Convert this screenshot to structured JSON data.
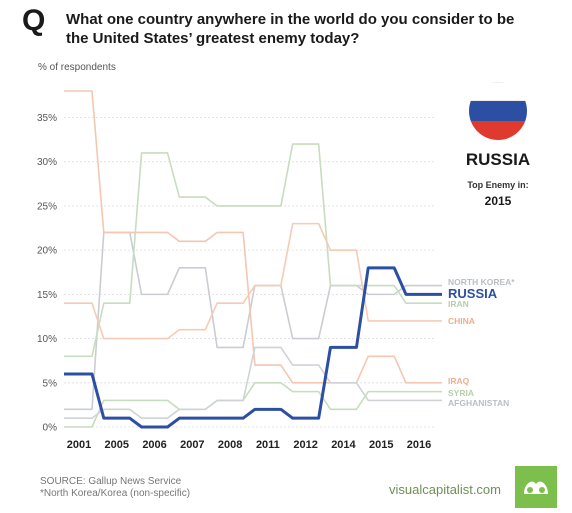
{
  "header": {
    "q_mark": "Q",
    "title": "What one country anywhere in the world do you consider to be the United States’ greatest enemy today?"
  },
  "panel": {
    "country": "RUSSIA",
    "top_enemy_label": "Top Enemy in:",
    "year": "2015"
  },
  "footer": {
    "source": "SOURCE: Gallup News Service",
    "note": "*North Korea/Korea (non-specific)",
    "brand": "visualcapitalist.com"
  },
  "colors": {
    "russia": "#2d4fa3",
    "north_korea": "#c9cdd2",
    "iran": "#c8dcbf",
    "china": "#f5cbb5",
    "iraq": "#f5c6b0",
    "syria": "#c8dcbf",
    "afghanistan": "#cfd3d6",
    "flag_white": "#ffffff",
    "flag_blue": "#2d4fa3",
    "flag_red": "#e03a2e",
    "brand_green": "#7cbf4c"
  },
  "chart_data": {
    "type": "line",
    "ylabel": "% of respondents",
    "ylim": [
      0,
      38
    ],
    "yticks": [
      "0%",
      "5%",
      "10%",
      "15%",
      "20%",
      "25%",
      "30%",
      "35%"
    ],
    "categories": [
      "2001",
      "2005",
      "2006",
      "2007",
      "2008",
      "2011",
      "2012",
      "2014",
      "2015",
      "2016"
    ],
    "grid": true,
    "series": [
      {
        "name": "NORTH KOREA*",
        "values": [
          2,
          22,
          15,
          18,
          9,
          16,
          10,
          16,
          15,
          16
        ]
      },
      {
        "name": "RUSSIA",
        "values": [
          6,
          1,
          0,
          1,
          1,
          2,
          1,
          9,
          18,
          15
        ]
      },
      {
        "name": "IRAN",
        "values": [
          8,
          14,
          31,
          26,
          25,
          25,
          32,
          16,
          16,
          14
        ]
      },
      {
        "name": "CHINA",
        "values": [
          14,
          10,
          10,
          11,
          14,
          16,
          23,
          20,
          12,
          12
        ]
      },
      {
        "name": "IRAQ",
        "values": [
          38,
          22,
          22,
          21,
          22,
          7,
          5,
          5,
          8,
          5
        ]
      },
      {
        "name": "SYRIA",
        "values": [
          0,
          3,
          3,
          2,
          3,
          5,
          4,
          2,
          4,
          4
        ]
      },
      {
        "name": "AFGHANISTAN",
        "values": [
          1,
          2,
          1,
          2,
          3,
          9,
          7,
          5,
          3,
          3
        ]
      }
    ]
  }
}
